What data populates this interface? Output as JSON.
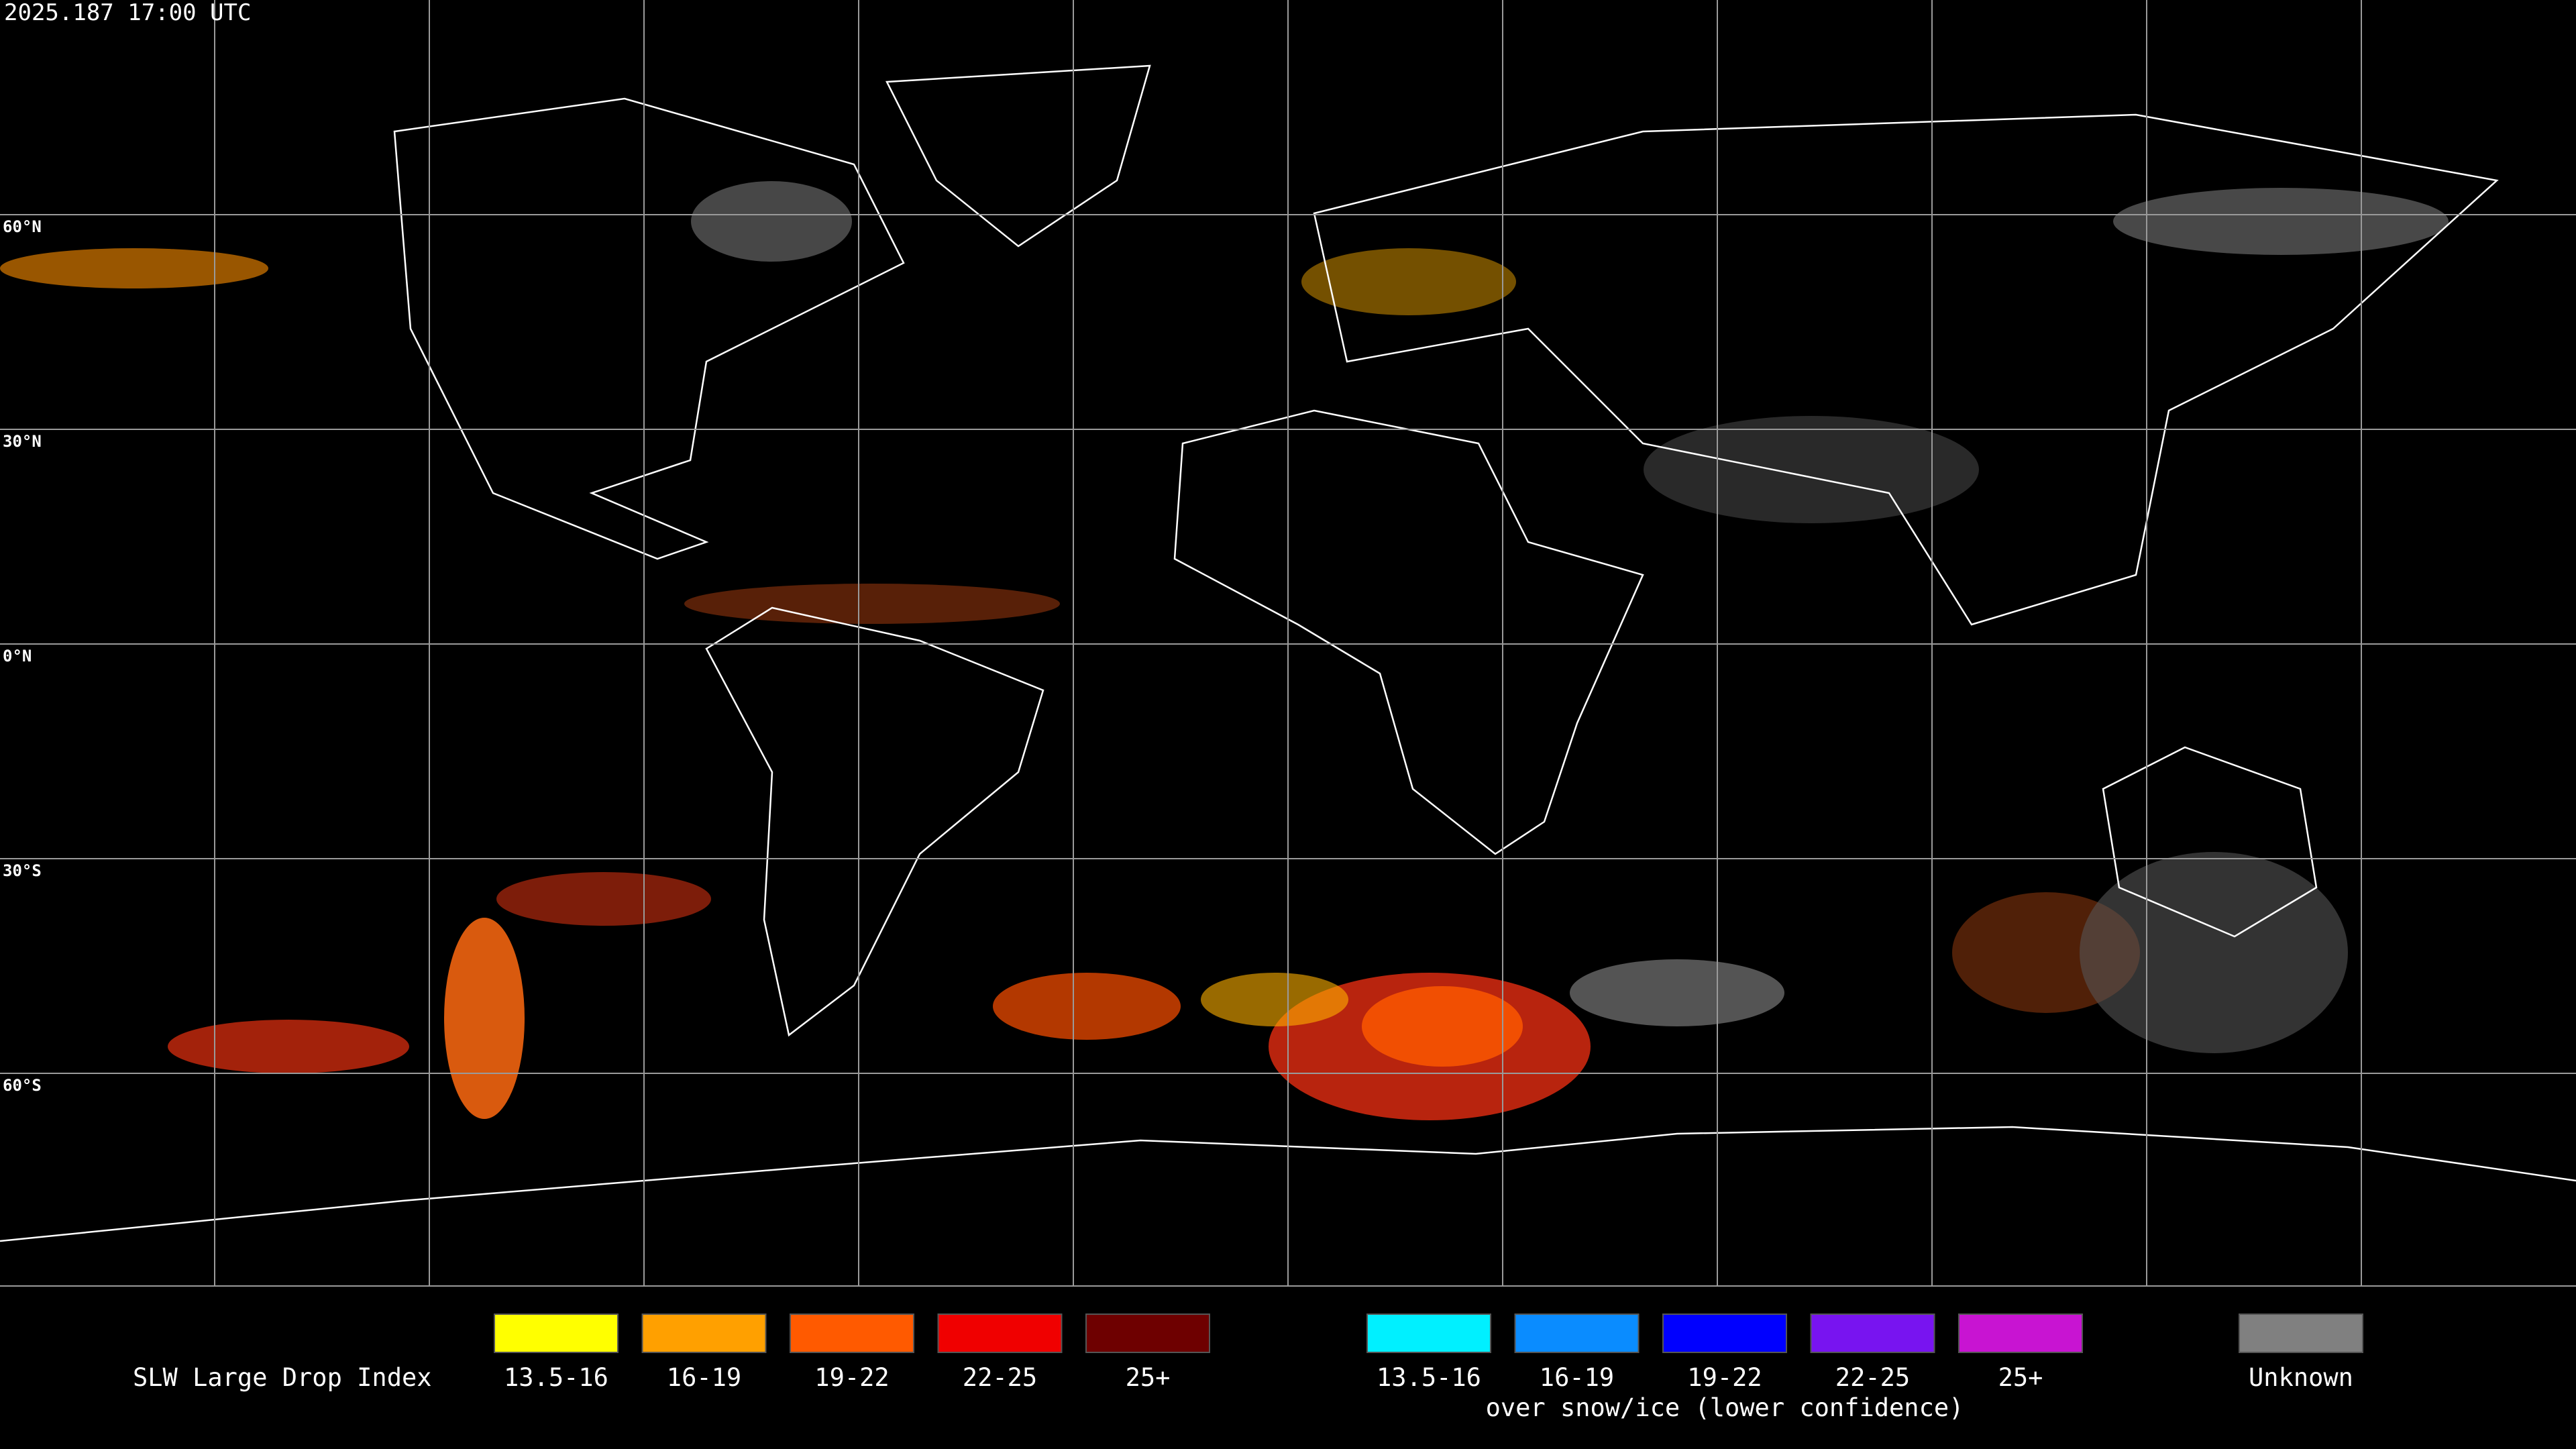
{
  "header": {
    "timestamp": "2025.187 17:00 UTC"
  },
  "map": {
    "lat_labels": [
      "60°N",
      "30°N",
      "0°N",
      "30°S",
      "60°S"
    ]
  },
  "legend": {
    "title": "SLW Large Drop Index",
    "groups": [
      {
        "items": [
          {
            "label": "13.5-16",
            "color": "#ffff00"
          },
          {
            "label": "16-19",
            "color": "#ffa000"
          },
          {
            "label": "19-22",
            "color": "#ff5a00"
          },
          {
            "label": "22-25",
            "color": "#f00000"
          },
          {
            "label": "25+",
            "color": "#6e0000"
          }
        ]
      },
      {
        "items": [
          {
            "label": "13.5-16",
            "color": "#00f0ff"
          },
          {
            "label": "16-19",
            "color": "#0a8cff"
          },
          {
            "label": "19-22",
            "color": "#0000ff"
          },
          {
            "label": "22-25",
            "color": "#7814f0"
          },
          {
            "label": "25+",
            "color": "#c814d2"
          }
        ],
        "caption": "over snow/ice (lower confidence)"
      },
      {
        "items": [
          {
            "label": "Unknown",
            "color": "#808080"
          }
        ]
      }
    ]
  }
}
